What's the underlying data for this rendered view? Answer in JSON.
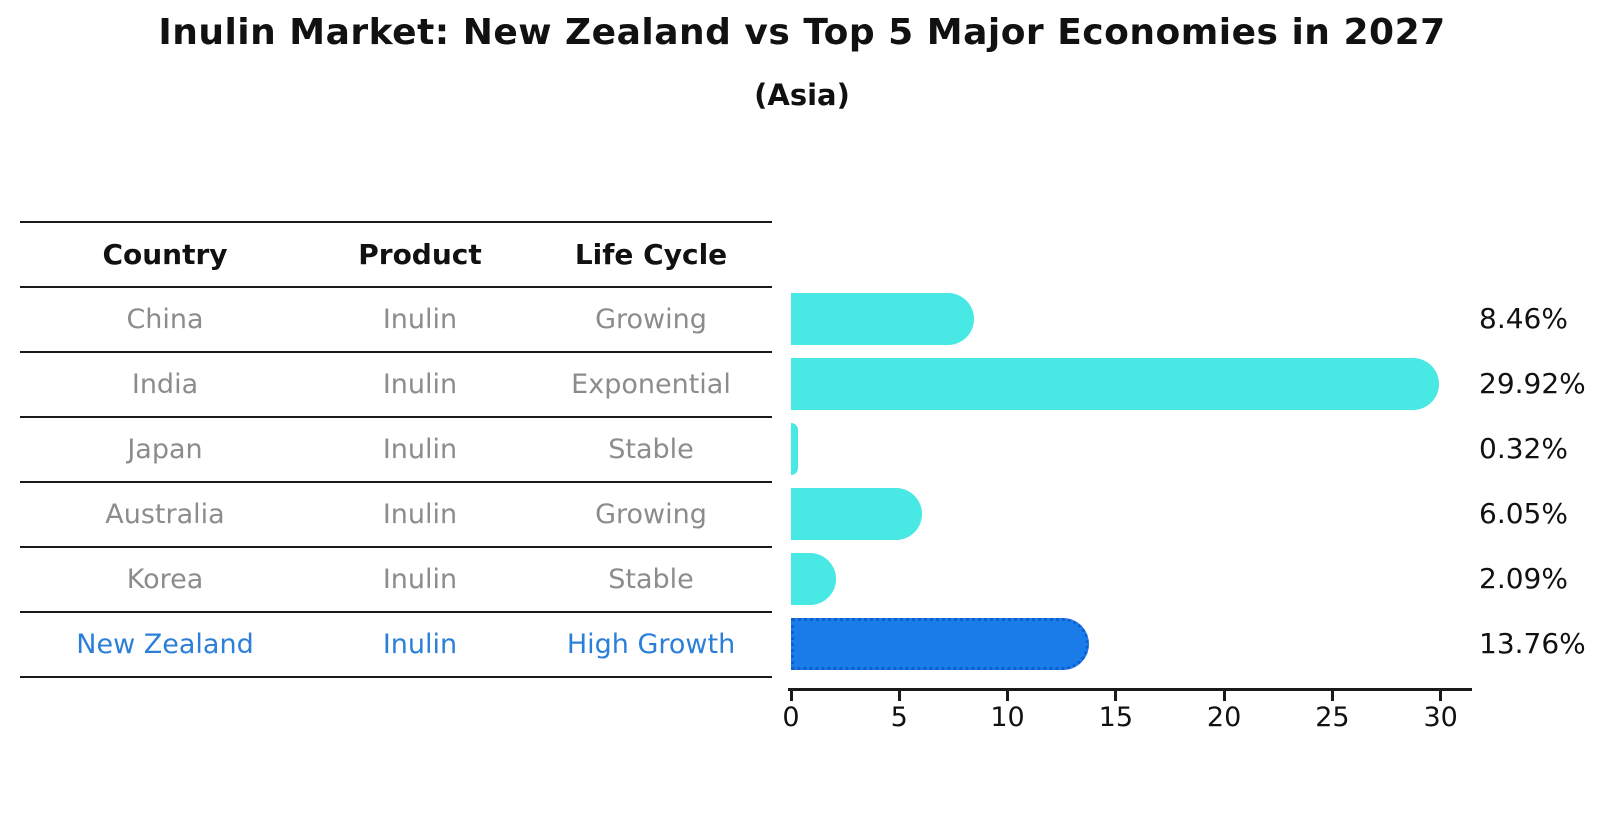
{
  "title": "Inulin Market: New Zealand vs Top 5 Major Economies in 2027",
  "subtitle": "(Asia)",
  "table": {
    "headers": [
      "Country",
      "Product",
      "Life Cycle"
    ],
    "rows": [
      {
        "country": "China",
        "product": "Inulin",
        "life_cycle": "Growing"
      },
      {
        "country": "India",
        "product": "Inulin",
        "life_cycle": "Exponential"
      },
      {
        "country": "Japan",
        "product": "Inulin",
        "life_cycle": "Stable"
      },
      {
        "country": "Australia",
        "product": "Inulin",
        "life_cycle": "Growing"
      },
      {
        "country": "Korea",
        "product": "Inulin",
        "life_cycle": "Stable"
      },
      {
        "country": "New Zealand",
        "product": "Inulin",
        "life_cycle": "High Growth"
      }
    ],
    "highlight_row": "New Zealand"
  },
  "chart_data": {
    "type": "bar",
    "orientation": "horizontal",
    "title": "Inulin Market: New Zealand vs Top 5 Major Economies in 2027",
    "subtitle": "(Asia)",
    "categories": [
      "China",
      "India",
      "Japan",
      "Australia",
      "Korea",
      "New Zealand"
    ],
    "values": [
      8.46,
      29.92,
      0.32,
      6.05,
      2.09,
      13.76
    ],
    "value_labels": [
      "8.46%",
      "29.92%",
      "0.32%",
      "6.05%",
      "2.09%",
      "13.76%"
    ],
    "xlabel": "",
    "ylabel": "",
    "xlim": [
      0,
      31.4
    ],
    "x_ticks": [
      0,
      5,
      10,
      15,
      20,
      25,
      30
    ],
    "grid": false,
    "legend": false,
    "highlight_index": 5,
    "bar_color": "#48E8E4",
    "highlight_bar_color": "#1A7CE8",
    "highlight_bar_edge_color": "#0F5FD0",
    "highlight_text_color": "#2B7FD9",
    "body_text_color": "#8C8C8C",
    "axis_color": "#1A1A1A"
  }
}
